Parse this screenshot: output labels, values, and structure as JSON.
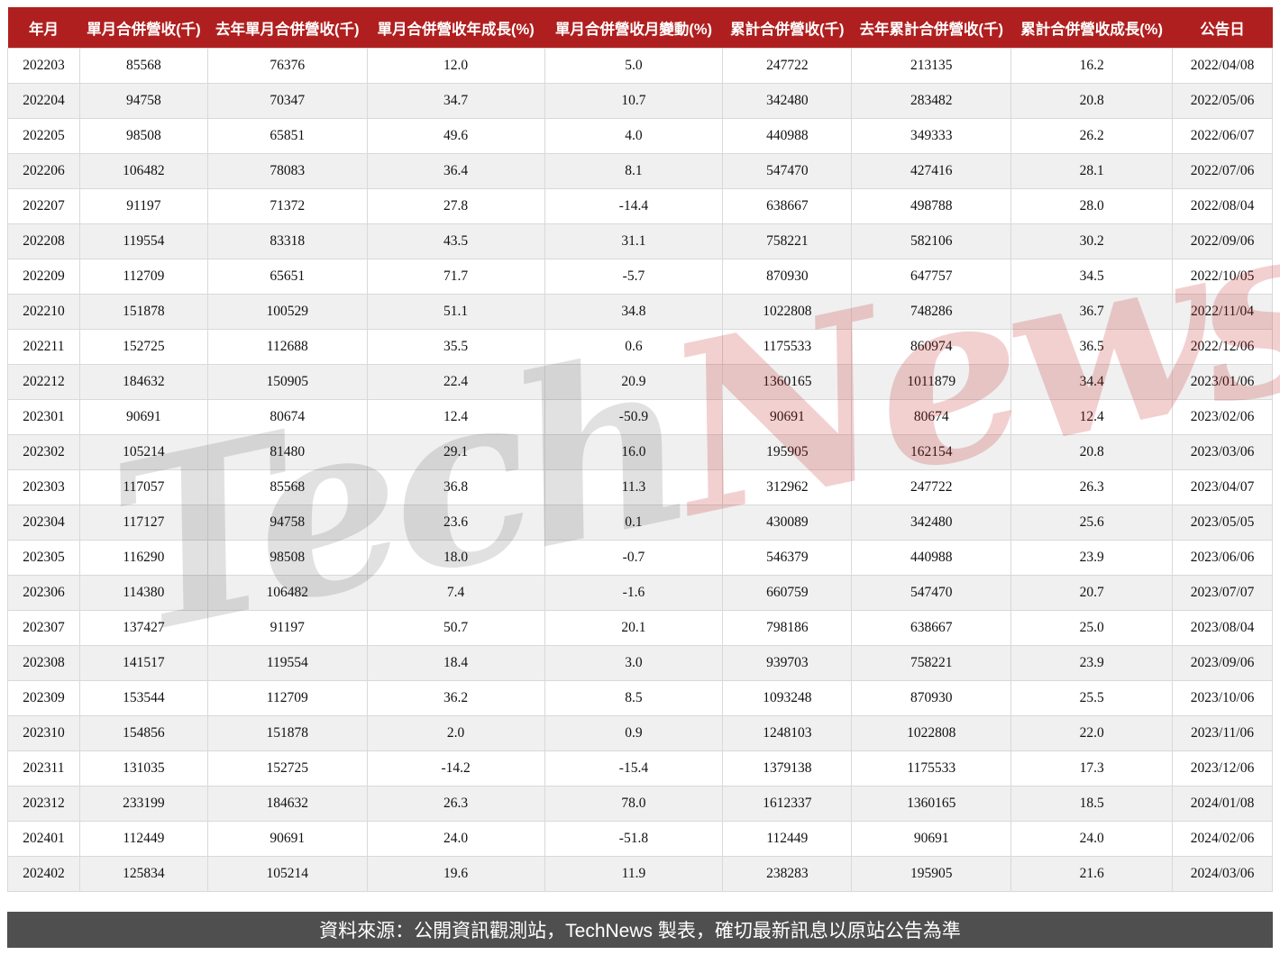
{
  "chart_data": {
    "type": "table",
    "columns": [
      "年月",
      "單月合併營收(千)",
      "去年單月合併營收(千)",
      "單月合併營收年成長(%)",
      "單月合併營收月變動(%)",
      "累計合併營收(千)",
      "去年累計合併營收(千)",
      "累計合併營收成長(%)",
      "公告日"
    ],
    "rows": [
      [
        "202203",
        "85568",
        "76376",
        "12.0",
        "5.0",
        "247722",
        "213135",
        "16.2",
        "2022/04/08"
      ],
      [
        "202204",
        "94758",
        "70347",
        "34.7",
        "10.7",
        "342480",
        "283482",
        "20.8",
        "2022/05/06"
      ],
      [
        "202205",
        "98508",
        "65851",
        "49.6",
        "4.0",
        "440988",
        "349333",
        "26.2",
        "2022/06/07"
      ],
      [
        "202206",
        "106482",
        "78083",
        "36.4",
        "8.1",
        "547470",
        "427416",
        "28.1",
        "2022/07/06"
      ],
      [
        "202207",
        "91197",
        "71372",
        "27.8",
        "-14.4",
        "638667",
        "498788",
        "28.0",
        "2022/08/04"
      ],
      [
        "202208",
        "119554",
        "83318",
        "43.5",
        "31.1",
        "758221",
        "582106",
        "30.2",
        "2022/09/06"
      ],
      [
        "202209",
        "112709",
        "65651",
        "71.7",
        "-5.7",
        "870930",
        "647757",
        "34.5",
        "2022/10/05"
      ],
      [
        "202210",
        "151878",
        "100529",
        "51.1",
        "34.8",
        "1022808",
        "748286",
        "36.7",
        "2022/11/04"
      ],
      [
        "202211",
        "152725",
        "112688",
        "35.5",
        "0.6",
        "1175533",
        "860974",
        "36.5",
        "2022/12/06"
      ],
      [
        "202212",
        "184632",
        "150905",
        "22.4",
        "20.9",
        "1360165",
        "1011879",
        "34.4",
        "2023/01/06"
      ],
      [
        "202301",
        "90691",
        "80674",
        "12.4",
        "-50.9",
        "90691",
        "80674",
        "12.4",
        "2023/02/06"
      ],
      [
        "202302",
        "105214",
        "81480",
        "29.1",
        "16.0",
        "195905",
        "162154",
        "20.8",
        "2023/03/06"
      ],
      [
        "202303",
        "117057",
        "85568",
        "36.8",
        "11.3",
        "312962",
        "247722",
        "26.3",
        "2023/04/07"
      ],
      [
        "202304",
        "117127",
        "94758",
        "23.6",
        "0.1",
        "430089",
        "342480",
        "25.6",
        "2023/05/05"
      ],
      [
        "202305",
        "116290",
        "98508",
        "18.0",
        "-0.7",
        "546379",
        "440988",
        "23.9",
        "2023/06/06"
      ],
      [
        "202306",
        "114380",
        "106482",
        "7.4",
        "-1.6",
        "660759",
        "547470",
        "20.7",
        "2023/07/07"
      ],
      [
        "202307",
        "137427",
        "91197",
        "50.7",
        "20.1",
        "798186",
        "638667",
        "25.0",
        "2023/08/04"
      ],
      [
        "202308",
        "141517",
        "119554",
        "18.4",
        "3.0",
        "939703",
        "758221",
        "23.9",
        "2023/09/06"
      ],
      [
        "202309",
        "153544",
        "112709",
        "36.2",
        "8.5",
        "1093248",
        "870930",
        "25.5",
        "2023/10/06"
      ],
      [
        "202310",
        "154856",
        "151878",
        "2.0",
        "0.9",
        "1248103",
        "1022808",
        "22.0",
        "2023/11/06"
      ],
      [
        "202311",
        "131035",
        "152725",
        "-14.2",
        "-15.4",
        "1379138",
        "1175533",
        "17.3",
        "2023/12/06"
      ],
      [
        "202312",
        "233199",
        "184632",
        "26.3",
        "78.0",
        "1612337",
        "1360165",
        "18.5",
        "2024/01/08"
      ],
      [
        "202401",
        "112449",
        "90691",
        "24.0",
        "-51.8",
        "112449",
        "90691",
        "24.0",
        "2024/02/06"
      ],
      [
        "202402",
        "125834",
        "105214",
        "19.6",
        "11.9",
        "238283",
        "195905",
        "21.6",
        "2024/03/06"
      ]
    ]
  },
  "watermark": {
    "part1": "Tech",
    "part2": "News"
  },
  "footer": {
    "text": "資料來源：公開資訊觀測站，TechNews 製表，確切最新訊息以原站公告為準"
  },
  "colors": {
    "page_bg": "#ffffff",
    "header_bg": "#b01f1f",
    "header_text": "#ffffff",
    "row_bg": "#ffffff",
    "row_alt_bg": "#f0f0f0",
    "cell_border": "#d9d9d9",
    "cell_text": "#111111",
    "footer_bg": "#4f4f4f",
    "footer_text": "#ffffff",
    "watermark_gray": "rgba(40,40,40,0.14)",
    "watermark_red": "rgba(195,40,40,0.22)"
  }
}
